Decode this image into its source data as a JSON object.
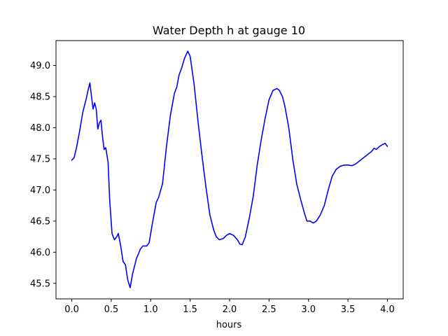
{
  "chart_data": {
    "type": "line",
    "title": "Water Depth h at gauge 10",
    "xlabel": "hours",
    "ylabel": "",
    "xlim": [
      -0.2,
      4.2
    ],
    "ylim": [
      45.25,
      49.4
    ],
    "x_ticks": [
      0.0,
      0.5,
      1.0,
      1.5,
      2.0,
      2.5,
      3.0,
      3.5,
      4.0
    ],
    "x_tick_labels": [
      "0.0",
      "0.5",
      "1.0",
      "1.5",
      "2.0",
      "2.5",
      "3.0",
      "3.5",
      "4.0"
    ],
    "y_ticks": [
      45.5,
      46.0,
      46.5,
      47.0,
      47.5,
      48.0,
      48.5,
      49.0
    ],
    "y_tick_labels": [
      "45.5",
      "46.0",
      "46.5",
      "47.0",
      "47.5",
      "48.0",
      "48.5",
      "49.0"
    ],
    "grid": false,
    "series": [
      {
        "color": "#0000ff",
        "points": [
          [
            0.0,
            47.48
          ],
          [
            0.03,
            47.52
          ],
          [
            0.06,
            47.68
          ],
          [
            0.1,
            47.95
          ],
          [
            0.14,
            48.25
          ],
          [
            0.18,
            48.45
          ],
          [
            0.21,
            48.62
          ],
          [
            0.23,
            48.72
          ],
          [
            0.25,
            48.5
          ],
          [
            0.27,
            48.3
          ],
          [
            0.29,
            48.4
          ],
          [
            0.31,
            48.3
          ],
          [
            0.33,
            47.98
          ],
          [
            0.35,
            48.08
          ],
          [
            0.37,
            48.12
          ],
          [
            0.39,
            47.85
          ],
          [
            0.41,
            47.65
          ],
          [
            0.43,
            47.68
          ],
          [
            0.46,
            47.45
          ],
          [
            0.48,
            46.85
          ],
          [
            0.51,
            46.3
          ],
          [
            0.54,
            46.2
          ],
          [
            0.57,
            46.25
          ],
          [
            0.59,
            46.3
          ],
          [
            0.62,
            46.1
          ],
          [
            0.65,
            45.85
          ],
          [
            0.68,
            45.8
          ],
          [
            0.71,
            45.55
          ],
          [
            0.74,
            45.43
          ],
          [
            0.77,
            45.65
          ],
          [
            0.82,
            45.9
          ],
          [
            0.87,
            46.05
          ],
          [
            0.9,
            46.1
          ],
          [
            0.95,
            46.1
          ],
          [
            0.98,
            46.15
          ],
          [
            1.02,
            46.45
          ],
          [
            1.07,
            46.8
          ],
          [
            1.1,
            46.88
          ],
          [
            1.15,
            47.1
          ],
          [
            1.2,
            47.7
          ],
          [
            1.25,
            48.2
          ],
          [
            1.3,
            48.55
          ],
          [
            1.33,
            48.65
          ],
          [
            1.36,
            48.85
          ],
          [
            1.39,
            48.95
          ],
          [
            1.43,
            49.12
          ],
          [
            1.47,
            49.23
          ],
          [
            1.5,
            49.15
          ],
          [
            1.55,
            48.7
          ],
          [
            1.6,
            48.1
          ],
          [
            1.65,
            47.55
          ],
          [
            1.7,
            47.05
          ],
          [
            1.75,
            46.6
          ],
          [
            1.8,
            46.35
          ],
          [
            1.83,
            46.25
          ],
          [
            1.87,
            46.2
          ],
          [
            1.92,
            46.22
          ],
          [
            1.96,
            46.27
          ],
          [
            2.0,
            46.3
          ],
          [
            2.05,
            46.27
          ],
          [
            2.1,
            46.2
          ],
          [
            2.13,
            46.13
          ],
          [
            2.16,
            46.12
          ],
          [
            2.2,
            46.25
          ],
          [
            2.25,
            46.55
          ],
          [
            2.3,
            46.9
          ],
          [
            2.35,
            47.4
          ],
          [
            2.4,
            47.8
          ],
          [
            2.45,
            48.15
          ],
          [
            2.5,
            48.45
          ],
          [
            2.55,
            48.6
          ],
          [
            2.6,
            48.63
          ],
          [
            2.63,
            48.6
          ],
          [
            2.67,
            48.5
          ],
          [
            2.7,
            48.35
          ],
          [
            2.75,
            48.0
          ],
          [
            2.8,
            47.5
          ],
          [
            2.85,
            47.1
          ],
          [
            2.9,
            46.85
          ],
          [
            2.95,
            46.62
          ],
          [
            2.98,
            46.5
          ],
          [
            3.02,
            46.5
          ],
          [
            3.06,
            46.47
          ],
          [
            3.1,
            46.5
          ],
          [
            3.15,
            46.6
          ],
          [
            3.2,
            46.75
          ],
          [
            3.25,
            47.0
          ],
          [
            3.3,
            47.22
          ],
          [
            3.35,
            47.33
          ],
          [
            3.4,
            47.38
          ],
          [
            3.45,
            47.4
          ],
          [
            3.5,
            47.4
          ],
          [
            3.55,
            47.39
          ],
          [
            3.6,
            47.42
          ],
          [
            3.65,
            47.47
          ],
          [
            3.7,
            47.52
          ],
          [
            3.75,
            47.57
          ],
          [
            3.8,
            47.62
          ],
          [
            3.83,
            47.67
          ],
          [
            3.86,
            47.65
          ],
          [
            3.9,
            47.7
          ],
          [
            3.94,
            47.73
          ],
          [
            3.97,
            47.75
          ],
          [
            4.0,
            47.7
          ]
        ]
      }
    ]
  }
}
